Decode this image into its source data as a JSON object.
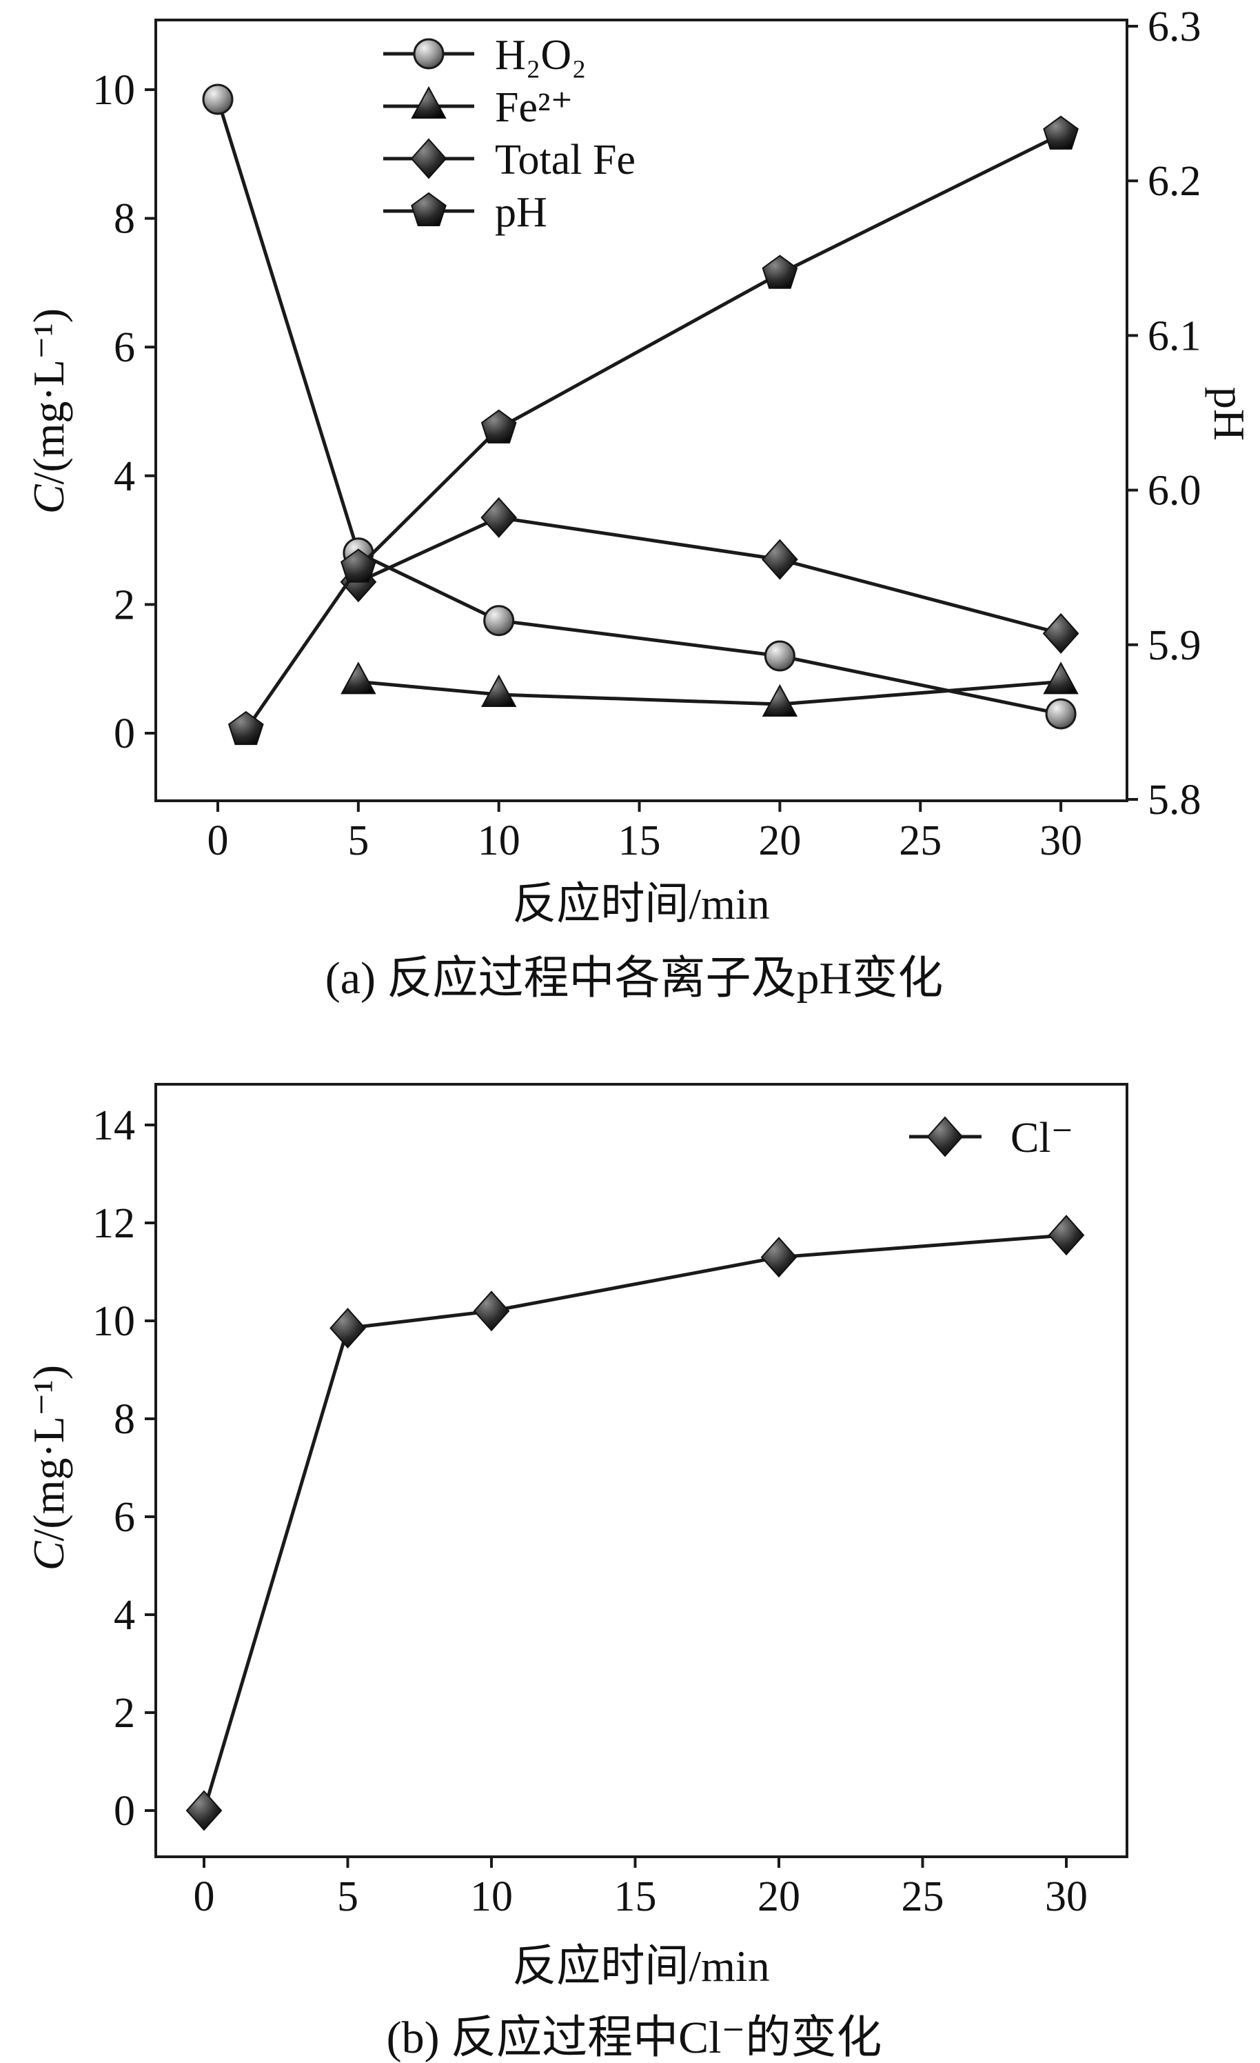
{
  "colors": {
    "line": "#1a1a1a",
    "axis": "#1a1a1a",
    "marker_dark": "#111111",
    "marker_gray": "#888888",
    "background": "#ffffff"
  },
  "chart_data": [
    {
      "type": "line",
      "id": "a",
      "caption": "(a) 反应过程中各离子及pH变化",
      "xlabel": "反应时间/min",
      "ylabel_left": "C/(mg·L⁻¹)",
      "ylabel_right": "pH",
      "x_ticks": [
        0,
        5,
        10,
        15,
        20,
        25,
        30
      ],
      "y_left_ticks": [
        0,
        2,
        4,
        6,
        8,
        10
      ],
      "y_right_ticks": [
        5.8,
        5.9,
        6.0,
        6.1,
        6.2,
        6.3
      ],
      "xlim": [
        -2.2,
        32.4
      ],
      "ylim_left": [
        -1.05,
        11.1
      ],
      "ylim_right": [
        5.8,
        6.3
      ],
      "grid": false,
      "legend_position": "top-left-inside",
      "series": [
        {
          "name": "H₂O₂",
          "marker": "circle",
          "axis": "left",
          "points": [
            [
              0,
              9.85
            ],
            [
              5,
              2.8
            ],
            [
              10,
              1.75
            ],
            [
              20,
              1.2
            ],
            [
              30,
              0.3
            ]
          ]
        },
        {
          "name": "Fe²⁺",
          "marker": "triangle",
          "axis": "left",
          "points": [
            [
              5,
              0.8
            ],
            [
              10,
              0.6
            ],
            [
              20,
              0.45
            ],
            [
              30,
              0.8
            ]
          ]
        },
        {
          "name": "Total Fe",
          "marker": "diamond",
          "axis": "left",
          "points": [
            [
              5,
              2.35
            ],
            [
              10,
              3.35
            ],
            [
              20,
              2.7
            ],
            [
              30,
              1.55
            ]
          ]
        },
        {
          "name": "pH",
          "marker": "pentagon",
          "axis": "right",
          "points": [
            [
              1,
              5.845
            ],
            [
              5,
              5.95
            ],
            [
              10,
              6.04
            ],
            [
              20,
              6.14
            ],
            [
              30,
              6.23
            ]
          ]
        }
      ]
    },
    {
      "type": "line",
      "id": "b",
      "caption": "(b) 反应过程中Cl⁻的变化",
      "xlabel": "反应时间/min",
      "ylabel_left": "C/(mg·L⁻¹)",
      "x_ticks": [
        0,
        5,
        10,
        15,
        20,
        25,
        30
      ],
      "y_left_ticks": [
        0,
        2,
        4,
        6,
        8,
        10,
        12,
        14
      ],
      "xlim": [
        -1.7,
        32.1
      ],
      "ylim_left": [
        -0.95,
        14.85
      ],
      "grid": false,
      "legend_position": "top-right-inside",
      "series": [
        {
          "name": "Cl⁻",
          "marker": "diamond",
          "axis": "left",
          "points": [
            [
              0,
              0
            ],
            [
              5,
              9.85
            ],
            [
              10,
              10.2
            ],
            [
              20,
              11.3
            ],
            [
              30,
              11.75
            ]
          ]
        }
      ]
    }
  ]
}
